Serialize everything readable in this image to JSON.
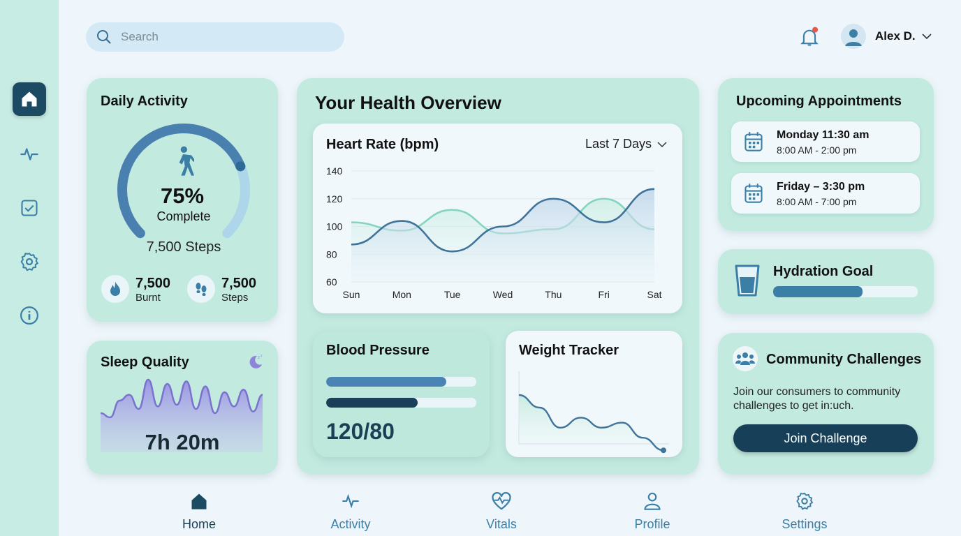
{
  "search": {
    "placeholder": "Search"
  },
  "user": {
    "name": "Alex D."
  },
  "sidebar": {
    "items": [
      "home",
      "activity",
      "tasks",
      "settings",
      "info"
    ]
  },
  "daily_activity": {
    "title": "Daily Activity",
    "percent": "75%",
    "percent_value": 0.75,
    "complete_label": "Complete",
    "steps_label": "7,500 Steps",
    "stats": [
      {
        "value": "7,500",
        "label": "Burnt",
        "icon": "flame-icon"
      },
      {
        "value": "7,500",
        "label": "Steps",
        "icon": "footprints-icon"
      }
    ]
  },
  "sleep": {
    "title": "Sleep Quality",
    "value": "7h 20m",
    "wave": [
      40,
      35,
      55,
      62,
      45,
      80,
      48,
      75,
      50,
      78,
      45,
      72,
      40,
      65,
      48,
      68,
      42,
      62
    ]
  },
  "overview": {
    "title": "Your Health Overview"
  },
  "heart_rate": {
    "title": "Heart Rate (bpm)",
    "range": "Last 7 Days"
  },
  "chart_data": {
    "type": "line",
    "title": "Heart Rate (bpm)",
    "categories": [
      "Sun",
      "Mon",
      "Tue",
      "Wed",
      "Thu",
      "Fri",
      "Sat"
    ],
    "ylim": [
      60,
      140
    ],
    "yticks": [
      140,
      120,
      100,
      80,
      60
    ],
    "grid": true,
    "series": [
      {
        "values": [
          87,
          104,
          82,
          100,
          120,
          103,
          127
        ],
        "color": "#3f7399"
      },
      {
        "values": [
          103,
          97,
          112,
          95,
          98,
          120,
          98
        ],
        "color": "#86d3c0"
      }
    ]
  },
  "blood_pressure": {
    "title": "Blood Pressure",
    "value": "120/80",
    "bars": [
      {
        "fill": 0.8,
        "color": "#4a84b5"
      },
      {
        "fill": 0.61,
        "color": "#1a3f58"
      }
    ]
  },
  "weight": {
    "title": "Weight Tracker",
    "trend": [
      85,
      80,
      72,
      76,
      72,
      74,
      68,
      63
    ]
  },
  "appointments": {
    "title": "Upcoming Appointments",
    "items": [
      {
        "title": "Monday 11:30 am",
        "time": "8:00 AM - 2:00 pm"
      },
      {
        "title": "Friday – 3:30 pm",
        "time": "8:00 AM - 7:00 pm"
      }
    ]
  },
  "hydration": {
    "title": "Hydration Goal",
    "progress": 0.62
  },
  "community": {
    "title": "Community Challenges",
    "text": "Join our consumers to community challenges to get in:uch.",
    "button": "Join Challenge"
  },
  "bottom_nav": [
    {
      "label": "Home"
    },
    {
      "label": "Activity"
    },
    {
      "label": "Vitals"
    },
    {
      "label": "Profile"
    },
    {
      "label": "Settings"
    }
  ],
  "colors": {
    "accent": "#3b7fa6",
    "dark": "#1c4a63",
    "card": "#c3eadf",
    "notification": "#e8574d"
  }
}
